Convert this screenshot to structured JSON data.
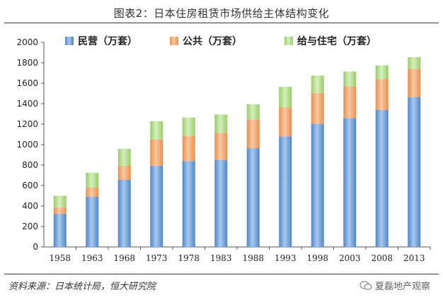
{
  "title": "图表2：日本住房租赁市场供给主体结构变化",
  "source": "资料来源：日本统计局，恒大研究院",
  "watermark": "夏磊地产观察",
  "watermark_icon": "wechat-icon",
  "colors": {
    "private": "#6d9fd3",
    "public": "#f0a56d",
    "employer": "#b4dc8a"
  },
  "chart_data": {
    "type": "bar",
    "stacked": true,
    "categories": [
      "1958",
      "1963",
      "1968",
      "1973",
      "1978",
      "1983",
      "1988",
      "1993",
      "1998",
      "2003",
      "2008",
      "2013"
    ],
    "series": [
      {
        "name": "民营（万套）",
        "values": [
          325,
          490,
          655,
          795,
          840,
          850,
          965,
          1080,
          1205,
          1260,
          1340,
          1465
        ]
      },
      {
        "name": "公共（万套）",
        "values": [
          60,
          90,
          140,
          255,
          245,
          265,
          280,
          285,
          300,
          310,
          300,
          275
        ]
      },
      {
        "name": "给与住宅（万套）",
        "values": [
          115,
          145,
          165,
          180,
          180,
          180,
          150,
          200,
          170,
          145,
          135,
          115
        ]
      }
    ],
    "ylim": [
      0,
      2000
    ],
    "yticks": [
      "0",
      "200",
      "400",
      "600",
      "800",
      "1000",
      "1200",
      "1400",
      "1600",
      "1800",
      "2000"
    ],
    "grid": false,
    "legend": "top"
  }
}
